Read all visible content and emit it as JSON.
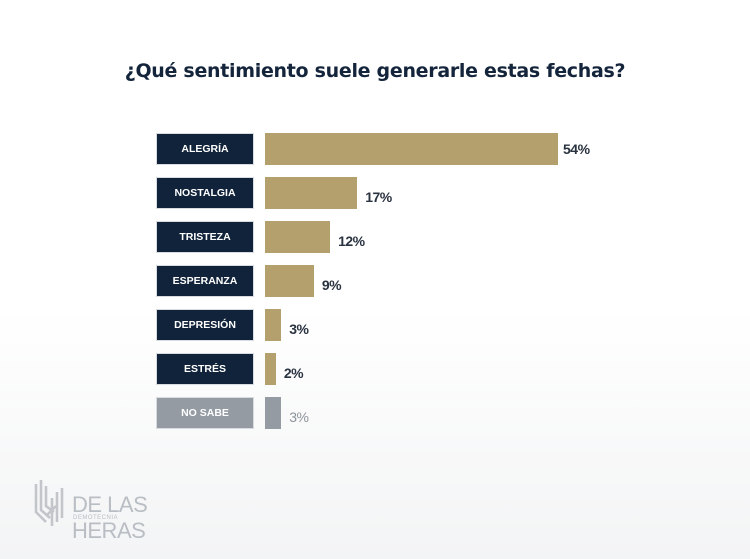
{
  "chart_data": {
    "type": "bar",
    "orientation": "horizontal",
    "title": "¿Qué sentimiento suele generarle estas fechas?",
    "xlabel": "",
    "ylabel": "",
    "xlim": [
      0,
      54
    ],
    "grid": false,
    "categories": [
      "ALEGRÍA",
      "NOSTALGIA",
      "TRISTEZA",
      "ESPERANZA",
      "DEPRESIÓN",
      "ESTRÉS",
      "NO SABE"
    ],
    "values": [
      54,
      17,
      12,
      9,
      3,
      2,
      3
    ],
    "value_labels": [
      "54%",
      "17%",
      "12%",
      "9%",
      "3%",
      "2%",
      "3%"
    ],
    "highlighted": [
      false,
      false,
      false,
      false,
      false,
      false,
      true
    ]
  },
  "colors": {
    "title": "#13243b",
    "label_bg": "#10233a",
    "label_bg_muted": "#959ba3",
    "bar": "#b3a06c",
    "bar_muted": "#959ba3",
    "value_text": "#2a3340",
    "value_text_muted": "#8d939b"
  },
  "logo": {
    "name": "DE LAS HERAS",
    "subtitle": "DEMOTECNIA"
  }
}
